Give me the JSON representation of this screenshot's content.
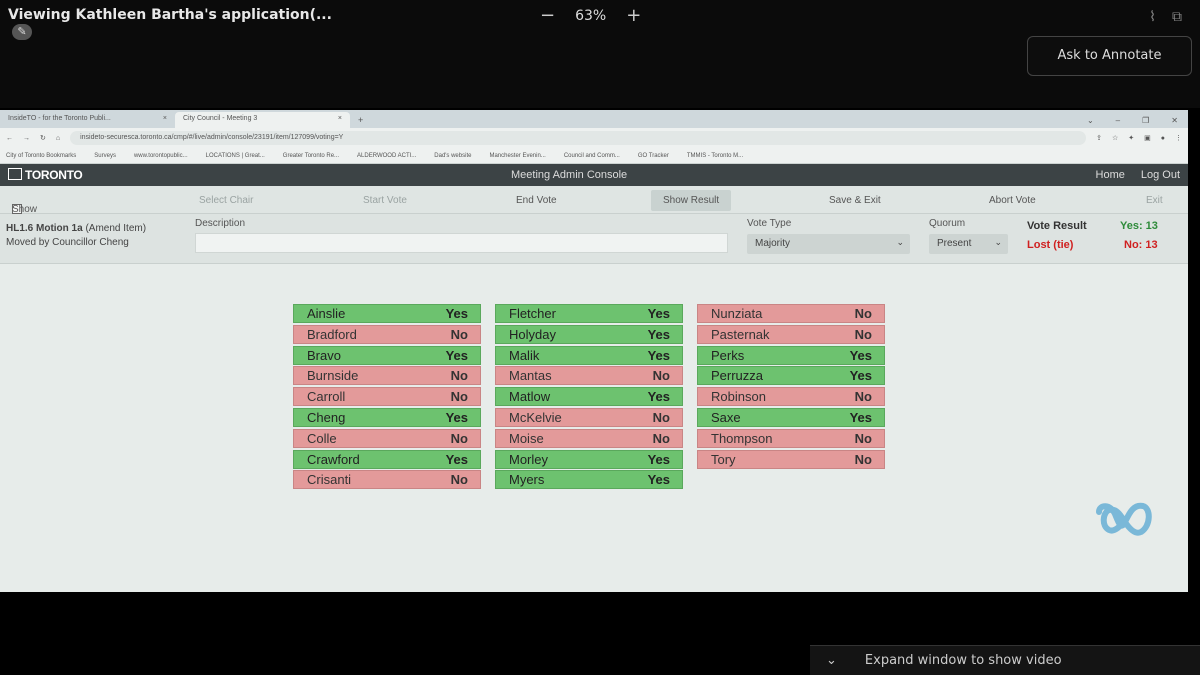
{
  "share": {
    "title": "Viewing Kathleen Bartha's application(...",
    "zoom_minus": "−",
    "zoom_level": "63%",
    "zoom_plus": "+",
    "annotate_button": "Ask to Annotate",
    "expand_video": "Expand window to show video"
  },
  "browser": {
    "tabs": [
      {
        "label": "InsideTO - for the Toronto Publi...",
        "close": "×"
      },
      {
        "label": "City Council - Meeting 3",
        "close": "×"
      }
    ],
    "new_tab": "+",
    "url": "insideto-securesca.toronto.ca/cmp/#/live/admin/console/23191/item/127099/voting=Y",
    "bookmarks": [
      "City of Toronto Bookmarks",
      "Surveys",
      "www.torontopublic...",
      "LOCATIONS | Great...",
      "Greater Toronto Re...",
      "ALDERWOOD ACTI...",
      "Dad's website",
      "Manchester Evenin...",
      "Council and Comm...",
      "GO Tracker",
      "TMMIS - Toronto M..."
    ]
  },
  "app": {
    "logo_text": "TORONTO",
    "console_title": "Meeting Admin Console",
    "home_link": "Home",
    "logout_link": "Log Out",
    "toolbar": {
      "show_content": "Show Content",
      "select_chair": "Select Chair",
      "start_vote": "Start Vote",
      "end_vote": "End Vote",
      "show_result": "Show Result",
      "save_exit": "Save & Exit",
      "abort_vote": "Abort Vote",
      "exit": "Exit"
    },
    "item": {
      "code": "HL1.6 Motion 1a",
      "type": "(Amend Item)",
      "moved_by": "Moved by Councillor Cheng",
      "description_label": "Description",
      "description_value": "",
      "vote_type_label": "Vote Type",
      "vote_type_value": "Majority",
      "quorum_label": "Quorum",
      "quorum_value": "Present",
      "vote_result_label": "Vote Result",
      "yes_count": "Yes: 13",
      "outcome": "Lost (tie)",
      "no_count": "No: 13"
    },
    "votes": [
      [
        {
          "name": "Ainslie",
          "vote": "Yes"
        },
        {
          "name": "Bradford",
          "vote": "No"
        },
        {
          "name": "Bravo",
          "vote": "Yes"
        },
        {
          "name": "Burnside",
          "vote": "No"
        },
        {
          "name": "Carroll",
          "vote": "No"
        },
        {
          "name": "Cheng",
          "vote": "Yes"
        },
        {
          "name": "Colle",
          "vote": "No"
        },
        {
          "name": "Crawford",
          "vote": "Yes"
        },
        {
          "name": "Crisanti",
          "vote": "No"
        }
      ],
      [
        {
          "name": "Fletcher",
          "vote": "Yes"
        },
        {
          "name": "Holyday",
          "vote": "Yes"
        },
        {
          "name": "Malik",
          "vote": "Yes"
        },
        {
          "name": "Mantas",
          "vote": "No"
        },
        {
          "name": "Matlow",
          "vote": "Yes"
        },
        {
          "name": "McKelvie",
          "vote": "No"
        },
        {
          "name": "Moise",
          "vote": "No"
        },
        {
          "name": "Morley",
          "vote": "Yes"
        },
        {
          "name": "Myers",
          "vote": "Yes"
        }
      ],
      [
        {
          "name": "Nunziata",
          "vote": "No"
        },
        {
          "name": "Pasternak",
          "vote": "No"
        },
        {
          "name": "Perks",
          "vote": "Yes"
        },
        {
          "name": "Perruzza",
          "vote": "Yes"
        },
        {
          "name": "Robinson",
          "vote": "No"
        },
        {
          "name": "Saxe",
          "vote": "Yes"
        },
        {
          "name": "Thompson",
          "vote": "No"
        },
        {
          "name": "Tory",
          "vote": "No"
        }
      ]
    ]
  },
  "colors": {
    "yes": "#6dc26f",
    "no": "#e39a9a",
    "header": "#3c4345"
  }
}
